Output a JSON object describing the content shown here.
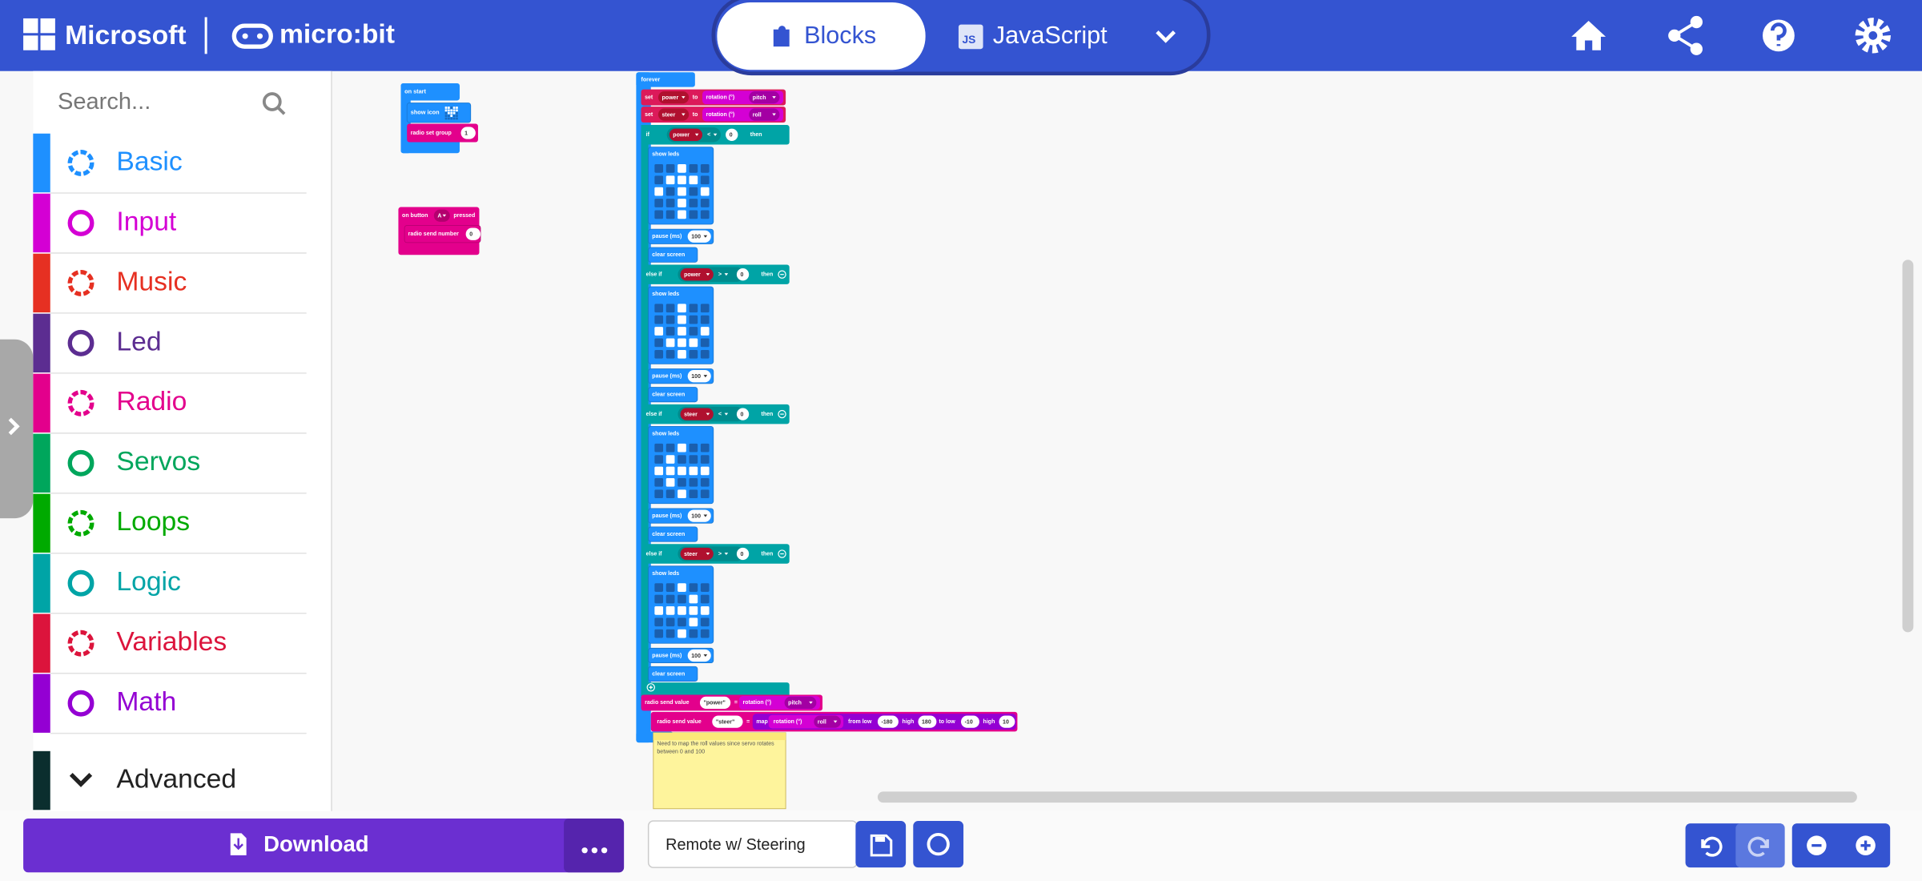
{
  "header": {
    "brand": "Microsoft",
    "product": "micro:bit",
    "tabs": {
      "blocks": "Blocks",
      "javascript": "JavaScript",
      "js_badge": "JS"
    }
  },
  "toolbox": {
    "search_placeholder": "Search...",
    "categories": [
      "Basic",
      "Input",
      "Music",
      "Led",
      "Radio",
      "Servos",
      "Loops",
      "Logic",
      "Variables",
      "Math"
    ],
    "advanced": "Advanced"
  },
  "workspace": {
    "on_start": {
      "hat": "on start",
      "show_icon": "show icon",
      "radio_set_group": "radio set group",
      "group": "1"
    },
    "on_button": {
      "hat": "on button",
      "button": "A",
      "event": "pressed",
      "radio_send_number": "radio send number",
      "number": "0"
    },
    "forever": {
      "hat": "forever",
      "set_rows": [
        {
          "set": "set",
          "var": "power",
          "to": "to",
          "input": "rotation (°)",
          "axis": "pitch"
        },
        {
          "set": "set",
          "var": "steer",
          "to": "to",
          "input": "rotation (°)",
          "axis": "roll"
        }
      ],
      "branches": [
        {
          "keyword": "if",
          "var": "power",
          "op": "<",
          "value": "0",
          "then": "then",
          "show_leds": "show leds",
          "pause": "pause (ms)",
          "pause_value": "100",
          "clear": "clear screen"
        },
        {
          "keyword": "else if",
          "var": "power",
          "op": ">",
          "value": "0",
          "then": "then",
          "show_leds": "show leds",
          "pause": "pause (ms)",
          "pause_value": "100",
          "clear": "clear screen"
        },
        {
          "keyword": "else if",
          "var": "steer",
          "op": "<",
          "value": "0",
          "then": "then",
          "show_leds": "show leds",
          "pause": "pause (ms)",
          "pause_value": "100",
          "clear": "clear screen"
        },
        {
          "keyword": "else if",
          "var": "steer",
          "op": ">",
          "value": "0",
          "then": "then",
          "show_leds": "show leds",
          "pause": "pause (ms)",
          "pause_value": "100",
          "clear": "clear screen"
        }
      ],
      "send_power": {
        "label": "radio send value",
        "name": "\"power\"",
        "eq": "=",
        "input": "rotation (°)",
        "axis": "pitch"
      },
      "send_steer": {
        "label": "radio send value",
        "name": "\"steer\"",
        "eq": "=",
        "map": "map",
        "input": "rotation (°)",
        "axis": "roll",
        "from_low": "from low",
        "from_low_value": "-180",
        "from_high": "high",
        "from_high_value": "180",
        "to_low": "to low",
        "to_low_value": "-10",
        "to_high": "high",
        "to_high_value": "10"
      }
    },
    "comment": [
      "Need to map the roll values since servo rotates",
      "between 0 and 100"
    ]
  },
  "footer": {
    "download": "Download",
    "project_name": "Remote w/ Steering"
  }
}
